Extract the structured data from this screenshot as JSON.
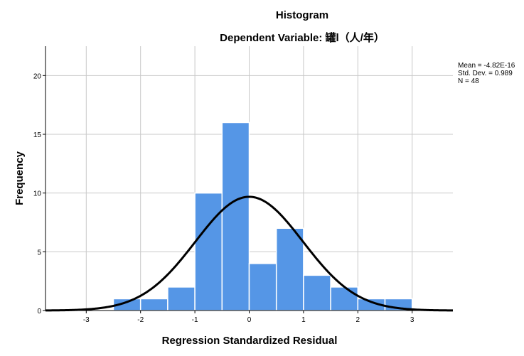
{
  "chart_data": {
    "type": "bar",
    "title": "Histogram",
    "subtitle": "Dependent Variable: 罐l（人/年）",
    "xlabel": "Regression Standardized Residual",
    "ylabel": "Frequency",
    "bin_width": 0.5,
    "bins": [
      {
        "start": -2.5,
        "end": -2.0,
        "value": 1
      },
      {
        "start": -2.0,
        "end": -1.5,
        "value": 1
      },
      {
        "start": -1.5,
        "end": -1.0,
        "value": 2
      },
      {
        "start": -1.0,
        "end": -0.5,
        "value": 10
      },
      {
        "start": -0.5,
        "end": 0.0,
        "value": 16
      },
      {
        "start": 0.0,
        "end": 0.5,
        "value": 4
      },
      {
        "start": 0.5,
        "end": 1.0,
        "value": 7
      },
      {
        "start": 1.0,
        "end": 1.5,
        "value": 3
      },
      {
        "start": 1.5,
        "end": 2.0,
        "value": 2
      },
      {
        "start": 2.0,
        "end": 2.5,
        "value": 1
      },
      {
        "start": 2.5,
        "end": 3.0,
        "value": 1
      }
    ],
    "xlim": [
      -3.75,
      3.75
    ],
    "ylim": [
      0,
      22.5
    ],
    "xticks": [
      "-3",
      "-2",
      "-1",
      "0",
      "1",
      "2",
      "3"
    ],
    "yticks": [
      "0",
      "5",
      "10",
      "15",
      "20"
    ],
    "grid": true,
    "bar_color": "#5596e6",
    "curve_color": "#000000",
    "normal_curve": {
      "mean": 0,
      "sd": 0.989,
      "n": 48
    },
    "stats": [
      "Mean = -4.82E-16",
      "Std. Dev. = 0.989",
      "N = 48"
    ]
  }
}
